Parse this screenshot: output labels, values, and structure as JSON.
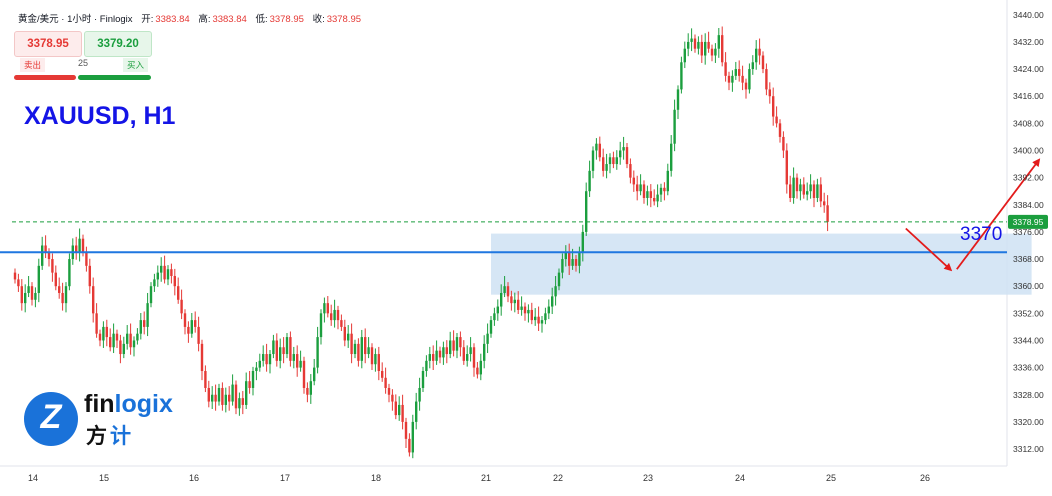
{
  "header": {
    "title": "黄金/美元 · 1小时 · Finlogix",
    "open_label": "开:",
    "open": "3383.84",
    "high_label": "高:",
    "high": "3383.84",
    "low_label": "低:",
    "low": "3378.95",
    "close_label": "收:",
    "close": "3378.95"
  },
  "trade": {
    "sell_price": "3378.95",
    "buy_price": "3379.20",
    "sell_label": "卖出",
    "buy_label": "买入",
    "quantity": "25"
  },
  "symbol": "XAUUSD, H1",
  "level_label": "3370",
  "logo": {
    "word_a": "fin",
    "word_b": "logix",
    "cn_a": "方",
    "cn_b": "计",
    "mark": "Z"
  },
  "colors": {
    "up": "#1b9e3e",
    "down": "#e53935",
    "level": "#1f77e0",
    "zone": "#cfe2f3",
    "arrow": "#e31b1b",
    "accent": "#1414e6"
  },
  "chart_data": {
    "type": "candlestick",
    "x_tick_labels": [
      "14",
      "15",
      "16",
      "17",
      "18",
      "21",
      "22",
      "23",
      "24",
      "25",
      "26"
    ],
    "y_tick_labels": [
      "3440.00",
      "3432.00",
      "3424.00",
      "3416.00",
      "3408.00",
      "3400.00",
      "3392.00",
      "3384.00",
      "3376.00",
      "3368.00",
      "3360.00",
      "3352.00",
      "3344.00",
      "3336.00",
      "3328.00",
      "3320.00",
      "3312.00"
    ],
    "ylim": [
      3307,
      3442
    ],
    "last_price": "3378.95",
    "last_price_value": 3378.95,
    "horizontal_level": 3370,
    "zone": {
      "from_bar": 140,
      "to_bar": 299,
      "y_low": 3357.5,
      "y_high": 3375.5
    },
    "path_arrows": [
      {
        "from_bar": 262,
        "from_y": 3377,
        "to_bar": 275,
        "to_y": 3365
      },
      {
        "from_bar": 277,
        "from_y": 3365,
        "to_bar": 301,
        "to_y": 3397
      }
    ],
    "closes": [
      3362,
      3360,
      3355,
      3358,
      3360,
      3356,
      3358,
      3366,
      3372,
      3370,
      3368,
      3364,
      3360,
      3358,
      3355,
      3360,
      3368,
      3372,
      3370,
      3374,
      3370,
      3366,
      3360,
      3352,
      3346,
      3344,
      3348,
      3345,
      3342,
      3346,
      3344,
      3340,
      3343,
      3346,
      3342,
      3344,
      3346,
      3350,
      3348,
      3355,
      3360,
      3362,
      3364,
      3366,
      3362,
      3365,
      3363,
      3360,
      3356,
      3352,
      3348,
      3346,
      3350,
      3348,
      3343,
      3335,
      3330,
      3326,
      3328,
      3326,
      3330,
      3325,
      3328,
      3326,
      3331,
      3324,
      3327,
      3325,
      3332,
      3330,
      3335,
      3336,
      3338,
      3340,
      3337,
      3340,
      3344,
      3338,
      3342,
      3340,
      3345,
      3338,
      3340,
      3336,
      3338,
      3330,
      3328,
      3332,
      3336,
      3345,
      3352,
      3355,
      3352,
      3350,
      3353,
      3350,
      3348,
      3344,
      3346,
      3340,
      3343,
      3338,
      3345,
      3340,
      3342,
      3337,
      3340,
      3335,
      3333,
      3330,
      3328,
      3326,
      3322,
      3325,
      3320,
      3315,
      3311,
      3320,
      3326,
      3330,
      3335,
      3338,
      3340,
      3338,
      3341,
      3339,
      3342,
      3340,
      3344,
      3341,
      3345,
      3342,
      3338,
      3340,
      3342,
      3336,
      3334,
      3338,
      3343,
      3346,
      3350,
      3352,
      3354,
      3358,
      3360,
      3357,
      3355,
      3356,
      3353,
      3354,
      3352,
      3353,
      3350,
      3351,
      3349,
      3350,
      3352,
      3354,
      3357,
      3360,
      3364,
      3368,
      3370,
      3366,
      3368,
      3366,
      3370,
      3376,
      3388,
      3394,
      3400,
      3402,
      3398,
      3394,
      3396,
      3398,
      3396,
      3398,
      3400,
      3401,
      3396,
      3392,
      3390,
      3388,
      3390,
      3386,
      3388,
      3386,
      3385,
      3387,
      3389,
      3388,
      3394,
      3402,
      3412,
      3418,
      3426,
      3430,
      3432,
      3433,
      3430,
      3432,
      3428,
      3432,
      3430,
      3428,
      3430,
      3434,
      3426,
      3422,
      3420,
      3422,
      3424,
      3422,
      3420,
      3418,
      3424,
      3426,
      3430,
      3428,
      3424,
      3418,
      3416,
      3410,
      3408,
      3404,
      3400,
      3390,
      3386,
      3392,
      3388,
      3390,
      3387,
      3388,
      3390,
      3386,
      3390,
      3385,
      3383.84,
      3378.95
    ]
  }
}
